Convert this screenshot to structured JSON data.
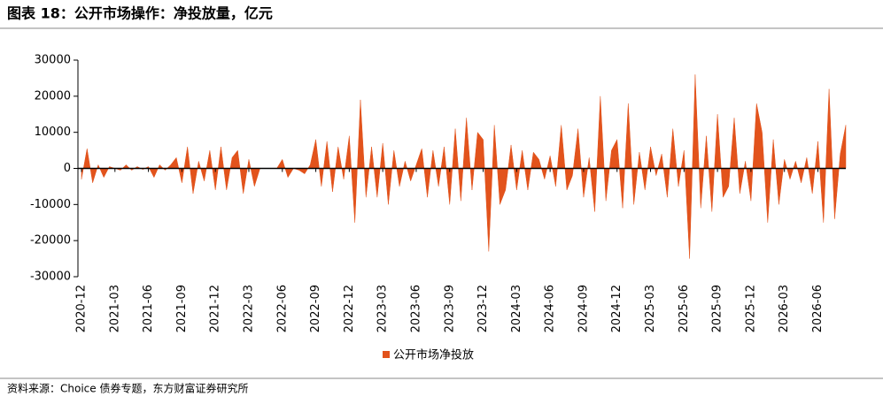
{
  "header": {
    "title": "图表 18：公开市场操作：净投放量，亿元"
  },
  "chart_data": {
    "type": "area",
    "color": "#e2531c",
    "series": [
      {
        "name": "公开市场净投放",
        "color": "#e2531c",
        "values": [
          -3000,
          5500,
          -4000,
          1000,
          -2500,
          500,
          0,
          -500,
          1000,
          -500,
          500,
          -300,
          500,
          -2500,
          1000,
          -500,
          1000,
          3000,
          -4000,
          6000,
          -7000,
          2000,
          -3500,
          5000,
          -6000,
          6000,
          -6000,
          3000,
          5000,
          -7000,
          2500,
          -5000,
          0,
          0,
          0,
          0,
          2500,
          -2500,
          0,
          -500,
          -1500,
          1000,
          8000,
          -5000,
          7500,
          -6500,
          6000,
          -3000,
          9000,
          -15000,
          19000,
          -8000,
          6000,
          -8000,
          7000,
          -10000,
          5000,
          -5000,
          2000,
          -3500,
          1000,
          5500,
          -8000,
          5000,
          -5000,
          6000,
          -10000,
          11000,
          -9000,
          14000,
          -6000,
          10000,
          8000,
          -23000,
          12000,
          -10000,
          -6000,
          6500,
          -6000,
          5000,
          -6000,
          4500,
          2500,
          -3000,
          3500,
          -5000,
          12000,
          -6000,
          -2000,
          11000,
          -8000,
          3000,
          -12000,
          20000,
          -9000,
          5000,
          8000,
          -11000,
          18000,
          -10000,
          4500,
          -6000,
          6000,
          -2000,
          4000,
          -8000,
          11000,
          -5000,
          5000,
          -25000,
          26000,
          -11000,
          9000,
          -12000,
          15000,
          -8000,
          -5000,
          14000,
          -7000,
          2000,
          -9000,
          18000,
          10000,
          -15000,
          8000,
          -10000,
          2500,
          -3000,
          2000,
          -4000,
          3000,
          -7000,
          7500,
          -15000,
          22000,
          -14000,
          4000,
          12000
        ]
      }
    ],
    "categories": [
      "2020-12",
      null,
      null,
      null,
      null,
      null,
      "2021-03",
      null,
      null,
      null,
      null,
      null,
      "2021-06",
      null,
      null,
      null,
      null,
      null,
      "2021-09",
      null,
      null,
      null,
      null,
      null,
      "2021-12",
      null,
      null,
      null,
      null,
      null,
      "2022-03",
      null,
      null,
      null,
      null,
      null,
      "2022-06",
      null,
      null,
      null,
      null,
      null,
      "2022-09",
      null,
      null,
      null,
      null,
      null,
      "2022-12",
      null,
      null,
      null,
      null,
      null,
      "2023-03",
      null,
      null,
      null,
      null,
      null,
      "2023-06",
      null,
      null,
      null,
      null,
      null,
      "2023-09",
      null,
      null,
      null,
      null,
      null,
      "2023-12",
      null,
      null,
      null,
      null,
      null,
      "2024-03",
      null,
      null,
      null,
      null,
      null,
      "2024-06",
      null,
      null,
      null,
      null,
      null,
      "2024-09",
      null,
      null,
      null,
      null,
      null,
      "2024-12",
      null,
      null,
      null,
      null,
      null,
      "2025-03",
      null,
      null,
      null,
      null,
      null,
      "2025-06",
      null,
      null,
      null,
      null,
      null,
      "2025-09",
      null,
      null,
      null,
      null,
      null,
      "2025-12",
      null,
      null,
      null,
      null,
      null,
      "2026-03",
      null,
      null,
      null,
      null,
      null,
      "2026-06",
      null,
      null,
      null,
      null,
      null
    ],
    "ylim": [
      -30000,
      30000
    ],
    "yticks": [
      -30000,
      -20000,
      -10000,
      0,
      10000,
      20000,
      30000
    ],
    "legend": "bottom"
  },
  "footer": {
    "source": "资料来源：Choice 债券专题，东方财富证券研究所"
  }
}
